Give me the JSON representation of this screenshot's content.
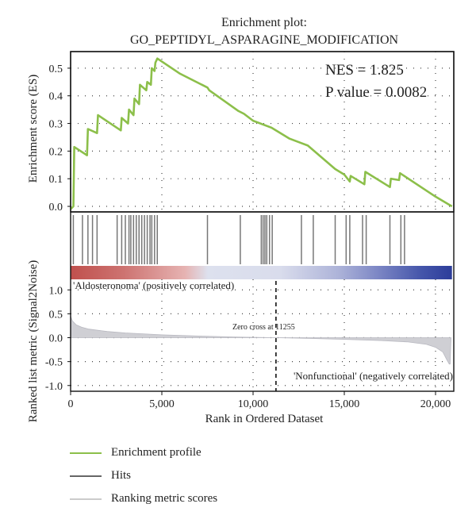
{
  "chart_data": {
    "type": "line",
    "title": "Enrichment plot:",
    "subtitle": "GO_PEPTIDYL_ASPARAGINE_MODIFICATION",
    "xlabel": "Rank in Ordered Dataset",
    "xlim": [
      0,
      21000
    ],
    "x_ticks": [
      0,
      5000,
      10000,
      15000,
      20000
    ],
    "x_tick_labels": [
      "0",
      "5,000",
      "10,000",
      "15,000",
      "20,000"
    ],
    "grid": true,
    "annotations": {
      "nes": "NES = 1.825",
      "pvalue": "P value = 0.0082",
      "zero_cross": "Zero cross at 11255",
      "positive_label": "'Aldosteronoma' (positively correlated)",
      "negative_label": "'Nonfunctional' (negatively correlated)"
    },
    "zero_cross": 11255,
    "es_panel": {
      "ylabel": "Enrichment score (ES)",
      "ylim": [
        -0.02,
        0.56
      ],
      "y_ticks": [
        0.0,
        0.1,
        0.2,
        0.3,
        0.4,
        0.5
      ],
      "y_tick_labels": [
        "0.0",
        "0.1",
        "0.2",
        "0.3",
        "0.4",
        "0.5"
      ],
      "series_name": "Enrichment profile",
      "points": [
        [
          0,
          -0.01
        ],
        [
          150,
          0.0
        ],
        [
          200,
          0.215
        ],
        [
          900,
          0.185
        ],
        [
          950,
          0.28
        ],
        [
          1450,
          0.265
        ],
        [
          1500,
          0.33
        ],
        [
          2750,
          0.275
        ],
        [
          2800,
          0.32
        ],
        [
          3150,
          0.3
        ],
        [
          3200,
          0.35
        ],
        [
          3450,
          0.33
        ],
        [
          3500,
          0.39
        ],
        [
          3750,
          0.37
        ],
        [
          3800,
          0.44
        ],
        [
          4150,
          0.42
        ],
        [
          4200,
          0.45
        ],
        [
          4400,
          0.44
        ],
        [
          4450,
          0.5
        ],
        [
          4600,
          0.49
        ],
        [
          4650,
          0.52
        ],
        [
          4750,
          0.535
        ],
        [
          6000,
          0.48
        ],
        [
          7500,
          0.43
        ],
        [
          7600,
          0.42
        ],
        [
          9200,
          0.345
        ],
        [
          9500,
          0.335
        ],
        [
          10000,
          0.31
        ],
        [
          11000,
          0.285
        ],
        [
          12000,
          0.245
        ],
        [
          13000,
          0.22
        ],
        [
          14500,
          0.135
        ],
        [
          15000,
          0.115
        ],
        [
          15300,
          0.09
        ],
        [
          15350,
          0.11
        ],
        [
          16100,
          0.08
        ],
        [
          16150,
          0.125
        ],
        [
          17500,
          0.07
        ],
        [
          17550,
          0.1
        ],
        [
          18000,
          0.095
        ],
        [
          18050,
          0.12
        ],
        [
          20000,
          0.035
        ],
        [
          20900,
          0.0
        ]
      ]
    },
    "hits": [
      150,
      650,
      950,
      1200,
      1450,
      2550,
      2800,
      3000,
      3200,
      3300,
      3450,
      3600,
      3750,
      3900,
      4050,
      4200,
      4350,
      4450,
      4600,
      4750,
      7500,
      9300,
      10450,
      10550,
      10650,
      10750,
      10900,
      11050,
      12650,
      13300,
      14500,
      15100,
      15300,
      16000,
      16200,
      17500,
      18100,
      18300
    ],
    "ranked_panel": {
      "ylabel": "Ranked list metric (Signal2Noise)",
      "ylim": [
        -1.12,
        1.22
      ],
      "y_ticks": [
        -1.0,
        -0.5,
        0.0,
        0.5,
        1.0
      ],
      "y_tick_labels": [
        "-1.0",
        "-0.5",
        "0.0",
        "0.5",
        "1.0"
      ],
      "series_name": "Ranking metric scores",
      "points": [
        [
          0,
          0.45
        ],
        [
          100,
          0.35
        ],
        [
          300,
          0.27
        ],
        [
          600,
          0.22
        ],
        [
          1000,
          0.18
        ],
        [
          2000,
          0.13
        ],
        [
          3000,
          0.1
        ],
        [
          5000,
          0.06
        ],
        [
          7000,
          0.035
        ],
        [
          9000,
          0.015
        ],
        [
          11255,
          0.0
        ],
        [
          13000,
          -0.015
        ],
        [
          15000,
          -0.035
        ],
        [
          17000,
          -0.06
        ],
        [
          18500,
          -0.09
        ],
        [
          19500,
          -0.14
        ],
        [
          20000,
          -0.2
        ],
        [
          20400,
          -0.3
        ],
        [
          20600,
          -0.45
        ],
        [
          20750,
          -0.55
        ],
        [
          20800,
          -0.55
        ],
        [
          20850,
          0.0
        ]
      ]
    },
    "legend": [
      {
        "name": "Enrichment profile",
        "color": "#8cbf4a"
      },
      {
        "name": "Hits",
        "color": "#666666"
      },
      {
        "name": "Ranking metric scores",
        "color": "#cccccc"
      }
    ],
    "colors": {
      "profile": "#8cbf4a",
      "hits": "#777777",
      "metric": "#cfcfd4",
      "positive": "#c0504d",
      "negative": "#2d3d9a",
      "neg_label": "#3a3aa0",
      "pos_label": "#b0392e"
    }
  }
}
